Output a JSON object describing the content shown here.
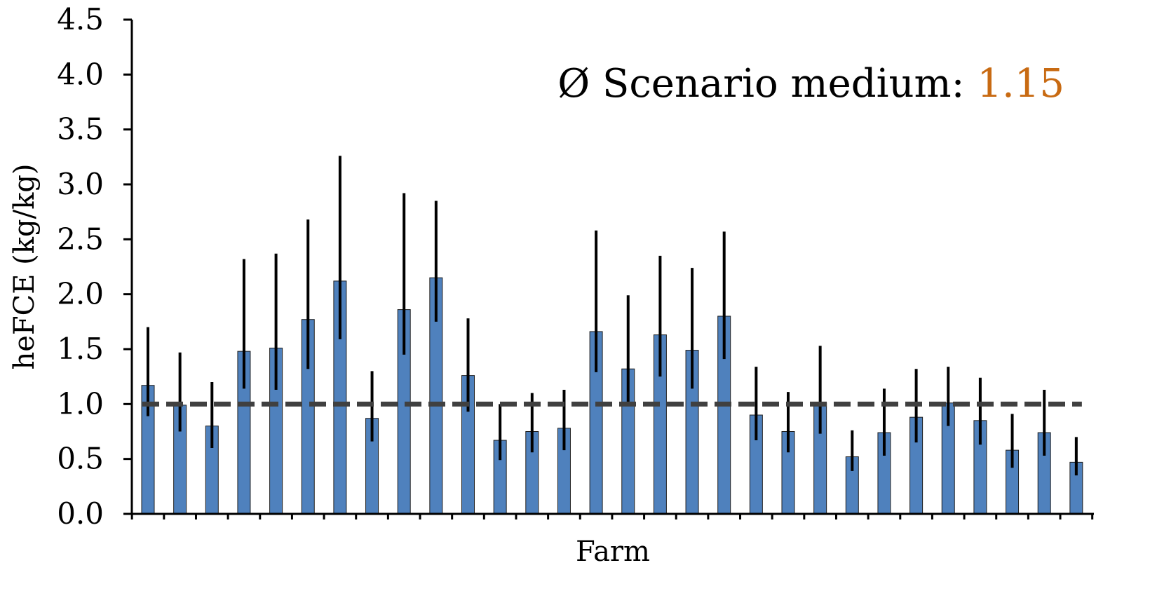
{
  "chart_data": {
    "type": "bar",
    "xlabel": "Farm",
    "ylabel": "heFCE (kg/kg)",
    "ylim": [
      0,
      4.5
    ],
    "yticks": [
      "0.0",
      "0.5",
      "1.0",
      "1.5",
      "2.0",
      "2.5",
      "3.0",
      "3.5",
      "4.0",
      "4.5"
    ],
    "grid": false,
    "bar_color": "#4f81bd",
    "reference_line": {
      "y": 1.0,
      "style": "dashed",
      "color": "#404040"
    },
    "annotation": {
      "label": "Ø Scenario medium: ",
      "value": "1.15",
      "value_color": "#c86a12"
    },
    "values": [
      1.17,
      0.99,
      0.8,
      1.48,
      1.51,
      1.77,
      2.12,
      0.87,
      1.86,
      2.15,
      1.26,
      0.67,
      0.75,
      0.78,
      1.66,
      1.32,
      1.63,
      1.49,
      1.8,
      0.9,
      0.75,
      1.01,
      0.52,
      0.74,
      0.88,
      1.01,
      0.85,
      0.58,
      0.74,
      0.47
    ],
    "error_low": [
      0.89,
      0.75,
      0.6,
      1.14,
      1.13,
      1.32,
      1.59,
      0.66,
      1.45,
      1.75,
      0.93,
      0.49,
      0.56,
      0.58,
      1.29,
      0.98,
      1.25,
      1.14,
      1.41,
      0.67,
      0.56,
      0.73,
      0.39,
      0.53,
      0.65,
      0.8,
      0.63,
      0.42,
      0.53,
      0.35
    ],
    "error_high": [
      1.7,
      1.47,
      1.2,
      2.32,
      2.37,
      2.68,
      3.26,
      1.3,
      2.92,
      2.85,
      1.78,
      1.0,
      1.1,
      1.13,
      2.58,
      1.99,
      2.35,
      2.24,
      2.57,
      1.34,
      1.11,
      1.53,
      0.76,
      1.14,
      1.32,
      1.34,
      1.24,
      0.91,
      1.13,
      0.7
    ]
  }
}
